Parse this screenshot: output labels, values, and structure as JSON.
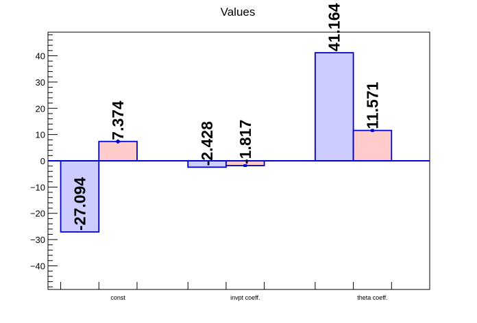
{
  "chart_data": {
    "type": "bar",
    "title": "Values",
    "xlabel": "",
    "ylabel": "",
    "categories": [
      "const",
      "invpt coeff.",
      "theta coeff."
    ],
    "series": [
      {
        "values": [
          -27.094,
          -2.428,
          41.164
        ],
        "labels": [
          "-27.094",
          "-2.428",
          "41.164"
        ],
        "color": "#ccccff",
        "edge": "#0000cc"
      },
      {
        "values": [
          7.374,
          -1.817,
          11.571
        ],
        "labels": [
          "7.374",
          "-1.817",
          "11.571"
        ],
        "errors": [
          0.8,
          0.5,
          0.6
        ],
        "color": "#ffcccc",
        "edge": "#0000cc"
      }
    ],
    "ylim": [
      -49,
      49
    ],
    "yticks": [
      -40,
      -30,
      -20,
      -10,
      0,
      10,
      20,
      30,
      40
    ],
    "yticklabels": [
      "−40",
      "−30",
      "−20",
      "−10",
      "0",
      "10",
      "20",
      "30",
      "40"
    ],
    "grid": false,
    "legend": "none"
  }
}
